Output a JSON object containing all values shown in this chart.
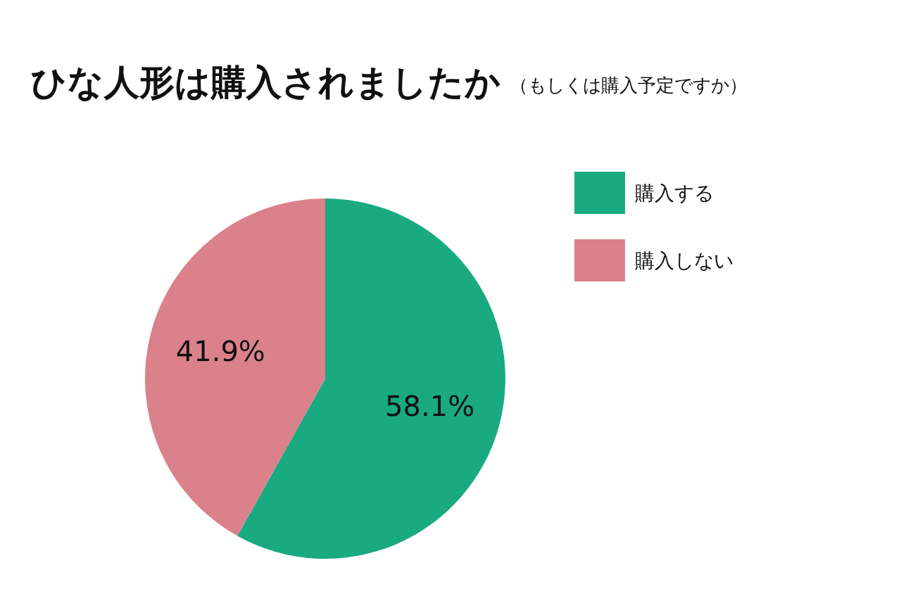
{
  "chart_data": {
    "type": "pie",
    "title": "ひな人形は購入されましたか",
    "subtitle": "（もしくは購入予定ですか）",
    "categories": [
      "購入する",
      "購入しない"
    ],
    "values": [
      58.1,
      41.9
    ],
    "colors": [
      "#1aaa80",
      "#db818b"
    ],
    "value_labels": [
      "58.1%",
      "41.9%"
    ],
    "legend": "top right"
  }
}
